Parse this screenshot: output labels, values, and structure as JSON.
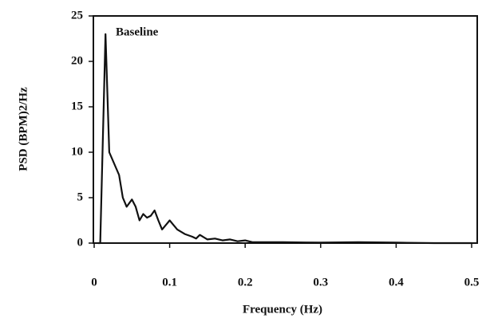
{
  "chart_data": {
    "type": "line",
    "annotation": "Baseline",
    "xlabel": "Frequency (Hz)",
    "ylabel": "PSD (BPM)2/Hz",
    "x": [
      0.005,
      0.008,
      0.015,
      0.02,
      0.033,
      0.038,
      0.043,
      0.05,
      0.055,
      0.06,
      0.065,
      0.07,
      0.075,
      0.08,
      0.085,
      0.09,
      0.097,
      0.1,
      0.105,
      0.11,
      0.12,
      0.13,
      0.135,
      0.14,
      0.15,
      0.16,
      0.17,
      0.18,
      0.19,
      0.2,
      0.21,
      0.25,
      0.3,
      0.35,
      0.4,
      0.45,
      0.5
    ],
    "values": [
      0,
      0,
      23,
      10,
      7.5,
      5,
      4,
      4.8,
      4,
      2.5,
      3.2,
      2.8,
      3,
      3.6,
      2.5,
      1.5,
      2.2,
      2.5,
      2,
      1.5,
      1,
      0.7,
      0.5,
      0.9,
      0.4,
      0.5,
      0.3,
      0.4,
      0.2,
      0.3,
      0.1,
      0.1,
      0.05,
      0.1,
      0.05,
      0,
      0
    ],
    "color": "#111111",
    "xlim": [
      0,
      0.5
    ],
    "ylim": [
      0,
      25
    ],
    "xticks": [
      0,
      0.1,
      0.2,
      0.3,
      0.4,
      0.5
    ],
    "yticks": [
      0,
      5,
      10,
      15,
      20,
      25
    ],
    "grid": false
  }
}
